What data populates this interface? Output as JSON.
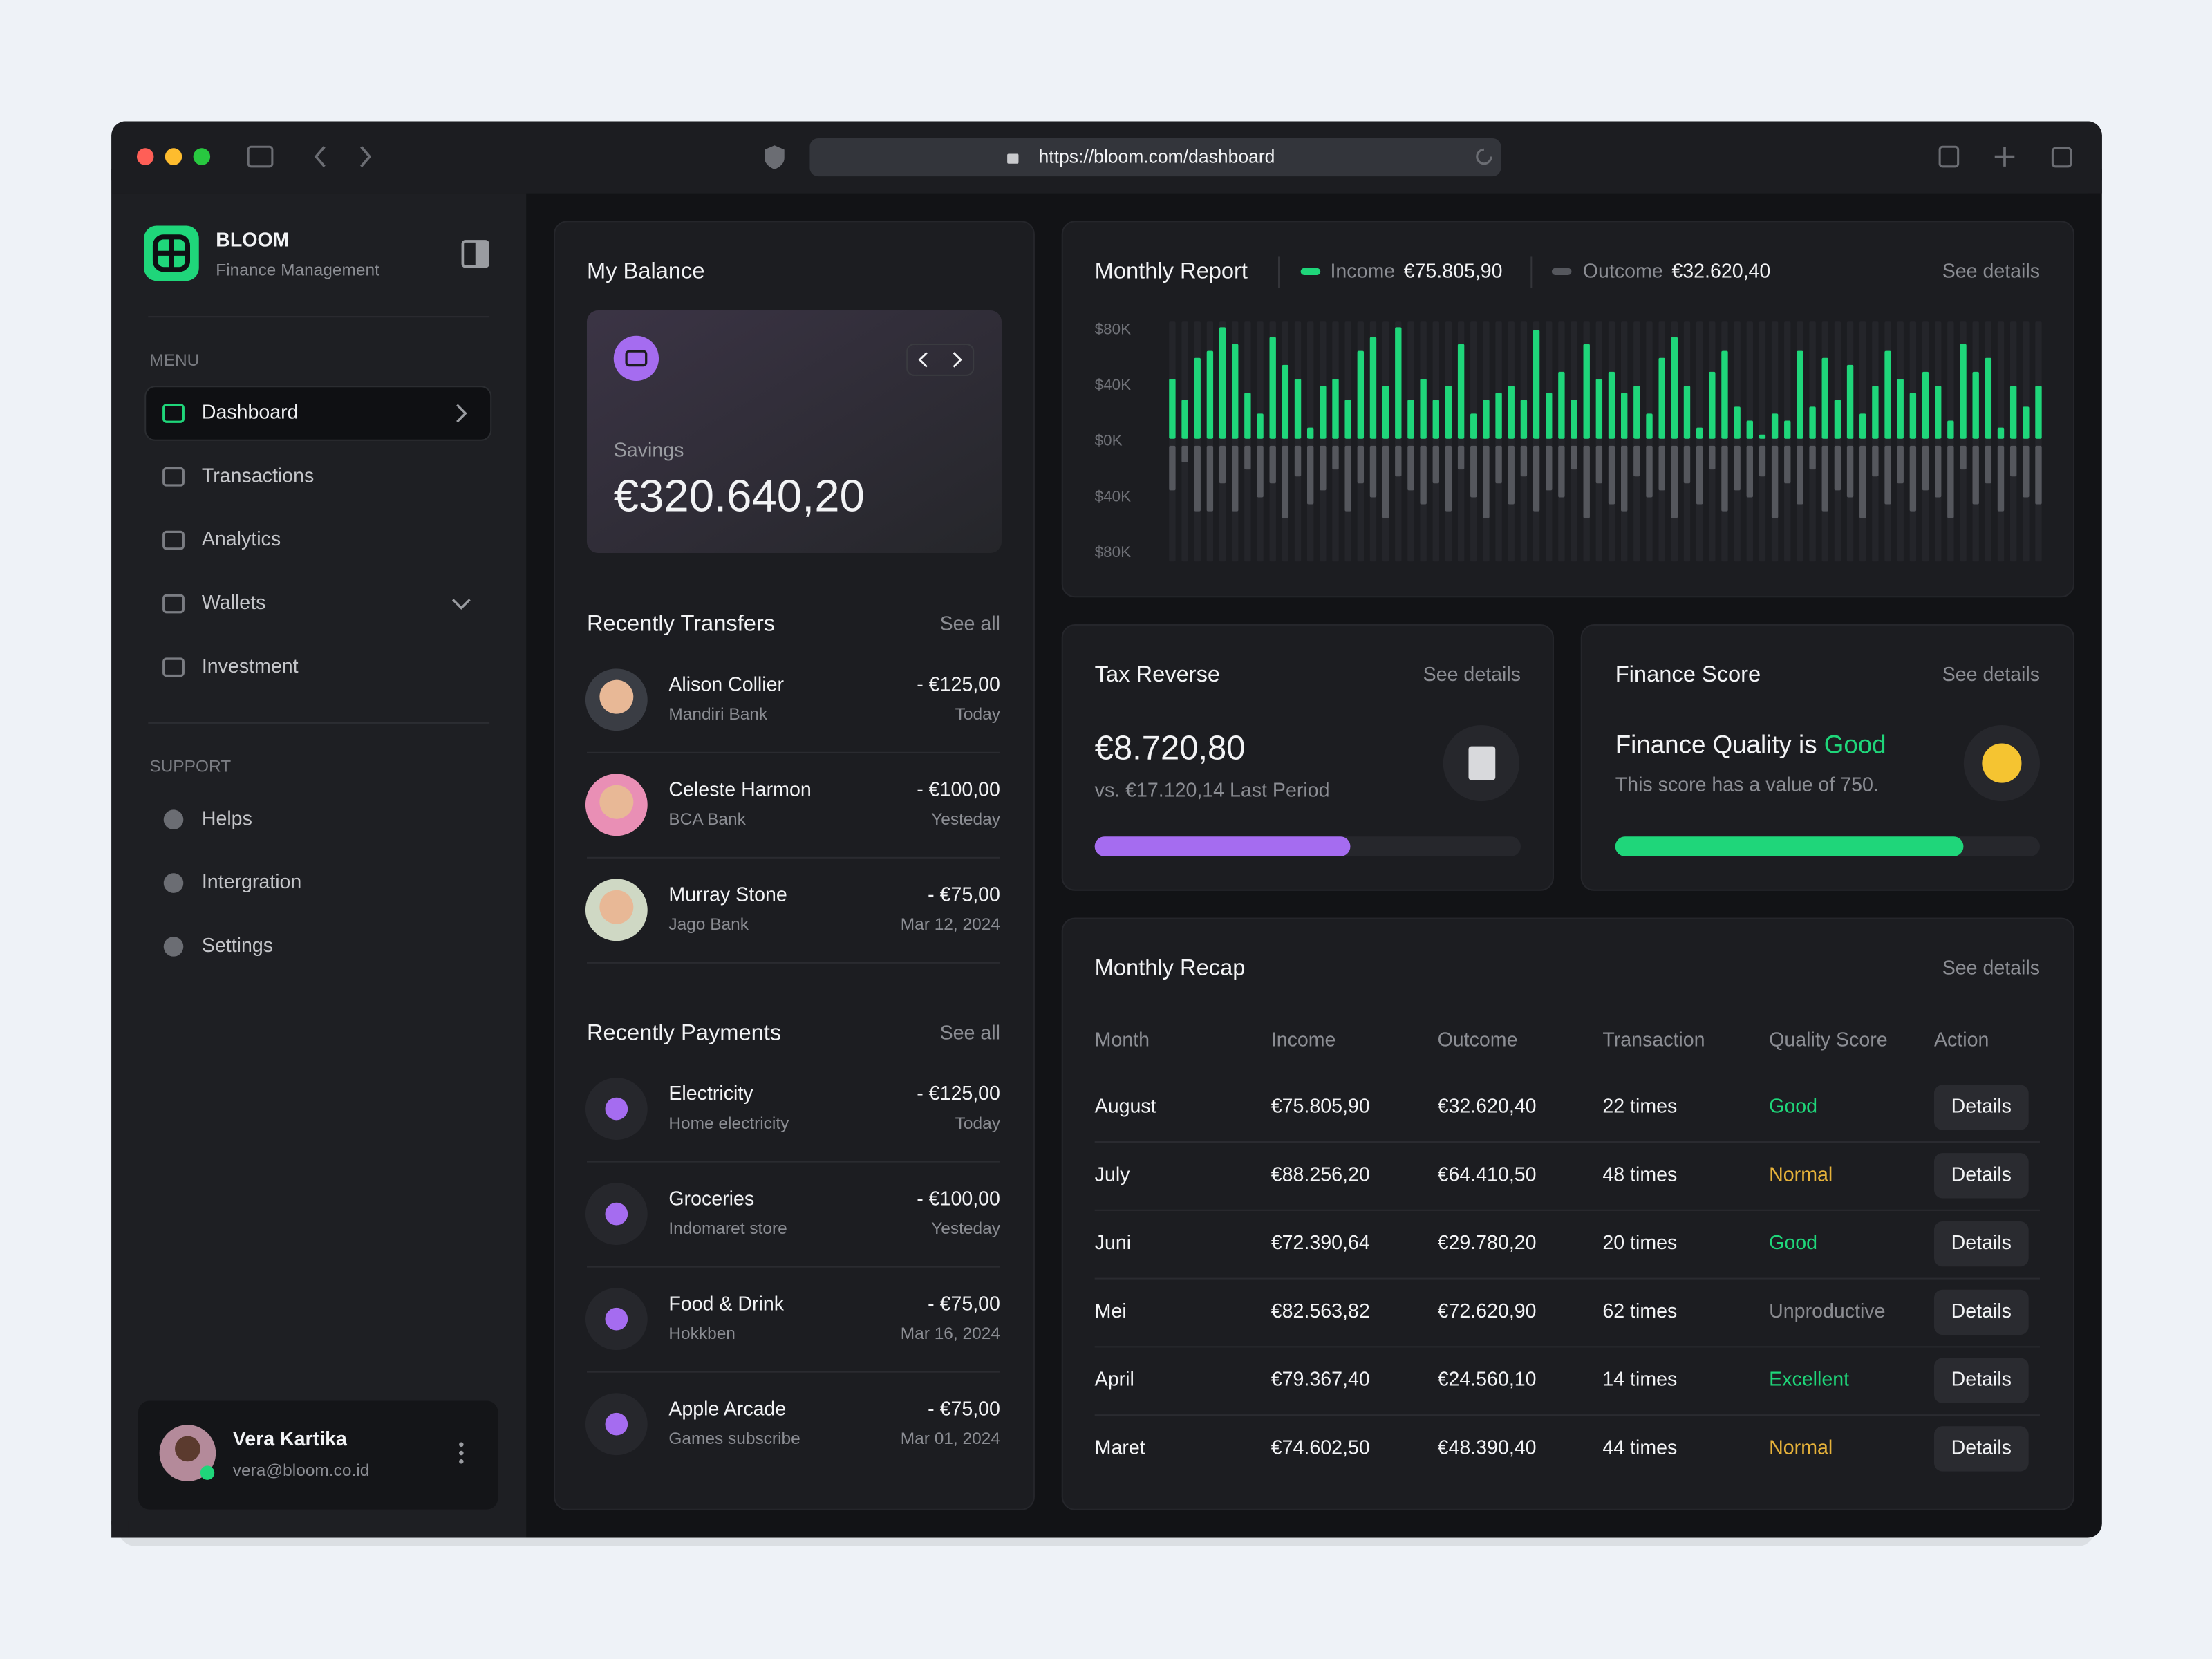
{
  "browser": {
    "url": "https://bloom.com/dashboard"
  },
  "sidebar": {
    "brand": "BLOOM",
    "tagline": "Finance Management",
    "menu_label": "MENU",
    "menu": [
      "Dashboard",
      "Transactions",
      "Analytics",
      "Wallets",
      "Investment"
    ],
    "support_label": "SUPPORT",
    "support": [
      "Helps",
      "Intergration",
      "Settings"
    ],
    "user": {
      "name": "Vera Kartika",
      "email": "vera@bloom.co.id"
    }
  },
  "balance": {
    "title": "My Balance",
    "label": "Savings",
    "amount": "€320.640,20"
  },
  "transfers": {
    "title": "Recently Transfers",
    "see_all": "See all",
    "items": [
      {
        "name": "Alison Collier",
        "bank": "Mandiri Bank",
        "amount": "- €125,00",
        "date": "Today"
      },
      {
        "name": "Celeste Harmon",
        "bank": "BCA Bank",
        "amount": "- €100,00",
        "date": "Yesteday"
      },
      {
        "name": "Murray Stone",
        "bank": "Jago Bank",
        "amount": "- €75,00",
        "date": "Mar 12, 2024"
      }
    ]
  },
  "payments": {
    "title": "Recently Payments",
    "see_all": "See all",
    "items": [
      {
        "name": "Electricity",
        "desc": "Home electricity",
        "amount": "- €125,00",
        "date": "Today"
      },
      {
        "name": "Groceries",
        "desc": "Indomaret store",
        "amount": "- €100,00",
        "date": "Yesteday"
      },
      {
        "name": "Food & Drink",
        "desc": "Hokkben",
        "amount": "- €75,00",
        "date": "Mar 16, 2024"
      },
      {
        "name": "Apple Arcade",
        "desc": "Games subscribe",
        "amount": "- €75,00",
        "date": "Mar 01, 2024"
      }
    ]
  },
  "chart_data": {
    "type": "bar",
    "title": "Monthly Report",
    "see_details": "See details",
    "totals": [
      "€75.805,90",
      "€32.620,40"
    ],
    "series": [
      {
        "name": "Income",
        "color": "#1fd67a",
        "values": [
          45,
          30,
          60,
          65,
          82,
          70,
          35,
          20,
          75,
          55,
          45,
          10,
          40,
          45,
          30,
          65,
          75,
          40,
          82,
          30,
          45,
          30,
          40,
          70,
          20,
          30,
          35,
          40,
          30,
          80,
          35,
          50,
          30,
          70,
          45,
          50,
          35,
          40,
          20,
          60,
          75,
          40,
          10,
          50,
          65,
          25,
          15,
          5,
          20,
          15,
          65,
          25,
          60,
          30,
          55,
          20,
          40,
          65,
          45,
          35,
          50,
          40,
          15,
          70,
          50,
          60,
          10,
          40,
          25,
          40
        ]
      },
      {
        "name": "Outcome",
        "color": "#55575d",
        "values": [
          -35,
          -15,
          -50,
          -50,
          -30,
          -50,
          -20,
          -40,
          -30,
          -55,
          -25,
          -45,
          -35,
          -20,
          -50,
          -30,
          -40,
          -55,
          -25,
          -35,
          -45,
          -30,
          -50,
          -20,
          -40,
          -55,
          -30,
          -45,
          -25,
          -50,
          -35,
          -40,
          -20,
          -55,
          -30,
          -45,
          -50,
          -25,
          -40,
          -35,
          -55,
          -30,
          -45,
          -20,
          -50,
          -35,
          -40,
          -25,
          -55,
          -30,
          -45,
          -20,
          -50,
          -35,
          -40,
          -55,
          -25,
          -45,
          -30,
          -50,
          -35,
          -40,
          -55,
          -20,
          -45,
          -30,
          -50,
          -25,
          -40,
          -45
        ]
      }
    ],
    "ylim": [
      -86,
      86
    ],
    "yticks": [
      {
        "value": 80,
        "label": "$80K"
      },
      {
        "value": 40,
        "label": "$40K"
      },
      {
        "value": 0,
        "label": "$0K"
      },
      {
        "value": -40,
        "label": "$40K"
      },
      {
        "value": -80,
        "label": "$80K"
      }
    ]
  },
  "tax": {
    "title": "Tax Reverse",
    "see_details": "See details",
    "amount": "€8.720,80",
    "comparison": "vs. €17.120,14 Last Period",
    "progress": 60,
    "range": [
      0,
      100
    ],
    "color": "#a56cf0"
  },
  "score": {
    "title": "Finance Score",
    "see_details": "See details",
    "heading": "Finance Quality is",
    "rating": "Good",
    "note": "This score has a value of 750.",
    "progress": 82,
    "range": [
      0,
      100
    ],
    "color": "#1fd67a"
  },
  "recap": {
    "title": "Monthly Recap",
    "see_details": "See details",
    "columns": [
      "Month",
      "Income",
      "Outcome",
      "Transaction",
      "Quality Score",
      "Action"
    ],
    "rows": [
      {
        "month": "August",
        "income": "€75.805,90",
        "outcome": "€32.620,40",
        "transactions": "22 times",
        "quality": "Good",
        "color": "#1fd67a",
        "action": "Details"
      },
      {
        "month": "July",
        "income": "€88.256,20",
        "outcome": "€64.410,50",
        "transactions": "48 times",
        "quality": "Normal",
        "color": "#e6b23a",
        "action": "Details"
      },
      {
        "month": "Juni",
        "income": "€72.390,64",
        "outcome": "€29.780,20",
        "transactions": "20 times",
        "quality": "Good",
        "color": "#1fd67a",
        "action": "Details"
      },
      {
        "month": "Mei",
        "income": "€82.563,82",
        "outcome": "€72.620,90",
        "transactions": "62 times",
        "quality": "Unproductive",
        "color": "#8a8b90",
        "action": "Details"
      },
      {
        "month": "April",
        "income": "€79.367,40",
        "outcome": "€24.560,10",
        "transactions": "14 times",
        "quality": "Excellent",
        "color": "#1fd67a",
        "action": "Details"
      },
      {
        "month": "Maret",
        "income": "€74.602,50",
        "outcome": "€48.390,40",
        "transactions": "44 times",
        "quality": "Normal",
        "color": "#e6b23a",
        "action": "Details"
      }
    ]
  }
}
